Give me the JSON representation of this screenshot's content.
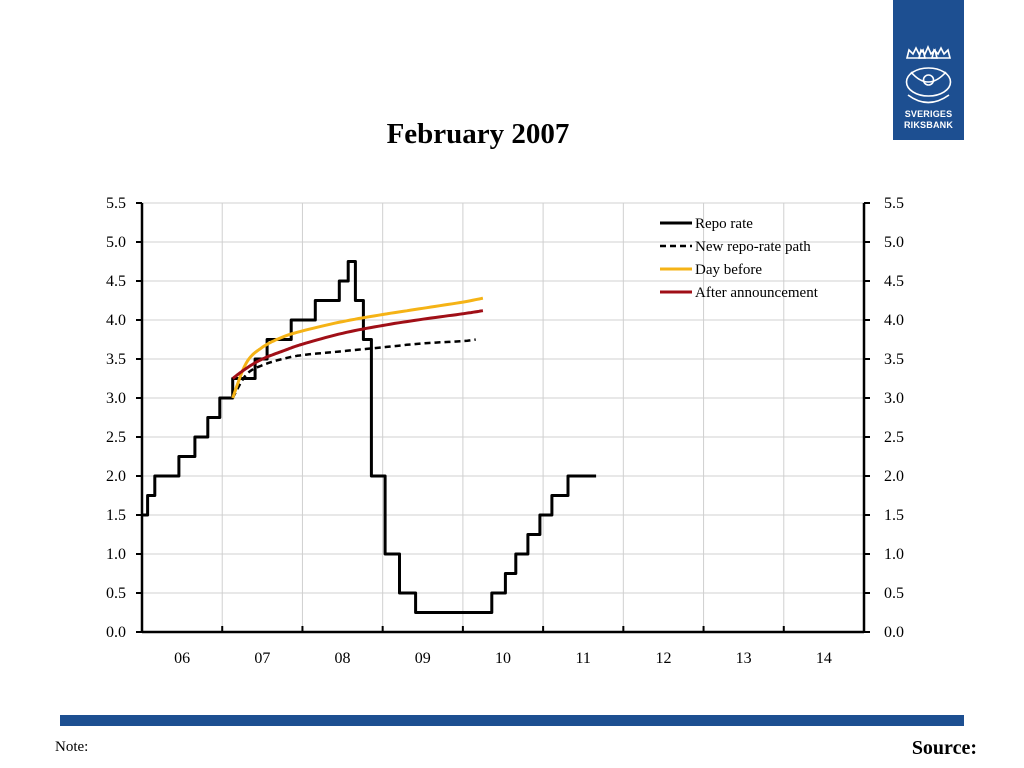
{
  "logo": {
    "line1": "SVERIGES",
    "line2": "RIKSBANK"
  },
  "footer": {
    "note": "Note:",
    "source": "Source:"
  },
  "colors": {
    "brand_blue": "#1d4f91"
  },
  "chart_data": {
    "type": "line",
    "title": "February 2007",
    "xlabel": "",
    "ylabel": "",
    "x_tick_labels": [
      "06",
      "07",
      "08",
      "09",
      "10",
      "11",
      "12",
      "13",
      "14"
    ],
    "xlim": [
      2006.0,
      2015.0
    ],
    "ylim": [
      0.0,
      5.5
    ],
    "y_ticks": [
      "0.0",
      "0.5",
      "1.0",
      "1.5",
      "2.0",
      "2.5",
      "3.0",
      "3.5",
      "4.0",
      "4.5",
      "5.0",
      "5.5"
    ],
    "y_axis_mirrored_right": true,
    "grid": true,
    "legend_position": "top-right",
    "series": [
      {
        "name": "Repo rate",
        "color": "#000000",
        "style": "step",
        "x": [
          2006.0,
          2006.07,
          2006.16,
          2006.46,
          2006.66,
          2006.82,
          2006.97,
          2007.13,
          2007.41,
          2007.56,
          2007.86,
          2008.16,
          2008.46,
          2008.57,
          2008.66,
          2008.76,
          2008.86,
          2009.03,
          2009.21,
          2009.41,
          2009.56,
          2010.36,
          2010.53,
          2010.66,
          2010.81,
          2010.96,
          2011.11,
          2011.31,
          2011.51,
          2011.66
        ],
        "y": [
          1.5,
          1.75,
          2.0,
          2.25,
          2.5,
          2.75,
          3.0,
          3.25,
          3.5,
          3.75,
          4.0,
          4.25,
          4.5,
          4.75,
          4.25,
          3.75,
          2.0,
          1.0,
          0.5,
          0.25,
          0.25,
          0.5,
          0.75,
          1.0,
          1.25,
          1.5,
          1.75,
          2.0,
          2.0,
          2.0
        ]
      },
      {
        "name": "New repo-rate path",
        "color": "#000000",
        "style": "dashed",
        "x": [
          2007.13,
          2007.3,
          2007.5,
          2007.75,
          2008.0,
          2008.5,
          2009.0,
          2009.5,
          2010.0,
          2010.16
        ],
        "y": [
          3.0,
          3.3,
          3.42,
          3.5,
          3.55,
          3.6,
          3.65,
          3.7,
          3.73,
          3.75
        ]
      },
      {
        "name": "Day before",
        "color": "#f5b316",
        "style": "solid",
        "x": [
          2007.13,
          2007.3,
          2007.5,
          2007.75,
          2008.0,
          2008.5,
          2009.0,
          2009.5,
          2010.0,
          2010.25
        ],
        "y": [
          3.0,
          3.45,
          3.65,
          3.78,
          3.86,
          3.98,
          4.07,
          4.15,
          4.23,
          4.28
        ]
      },
      {
        "name": "After announcement",
        "color": "#a00f17",
        "style": "solid",
        "x": [
          2007.13,
          2007.3,
          2007.5,
          2007.75,
          2008.0,
          2008.5,
          2009.0,
          2009.5,
          2010.0,
          2010.25
        ],
        "y": [
          3.25,
          3.38,
          3.5,
          3.6,
          3.69,
          3.83,
          3.93,
          4.01,
          4.08,
          4.12
        ]
      }
    ]
  }
}
